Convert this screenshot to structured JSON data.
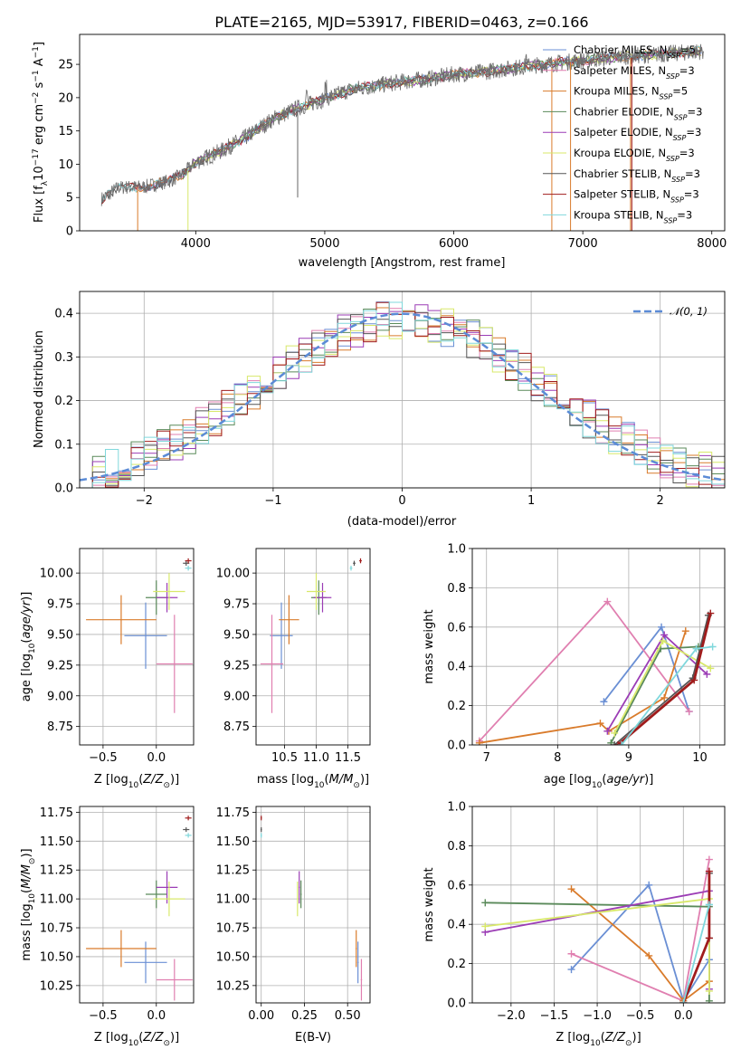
{
  "figure": {
    "title": "PLATE=2165, MJD=53917, FIBERID=0463, z=0.166"
  },
  "colors": {
    "chabrier_miles": "#6a8fd4",
    "salpeter_miles": "#e07fb0",
    "kroupa_miles": "#d97b2b",
    "chabrier_elodie": "#5a8a5a",
    "salpeter_elodie": "#9b3cb5",
    "kroupa_elodie": "#d8e86a",
    "chabrier_stelib": "#555555",
    "salpeter_stelib": "#a01c1c",
    "kroupa_stelib": "#80d8dc",
    "gaussian": "#5b8bd6",
    "grid": "#b0b0b0"
  },
  "models": [
    {
      "key": "chabrier_miles",
      "name": "Chabrier MILES, N",
      "n": "=5",
      "color": "#6a8fd4",
      "Z": -0.1,
      "Z_err": 0.2,
      "age": 9.49,
      "age_err": 0.27,
      "mass": 10.45,
      "mass_err": 0.18,
      "ebv": 0.56,
      "age_w": [
        [
          8.65,
          0.22
        ],
        [
          9.46,
          0.6
        ],
        [
          9.85,
          0.17
        ]
      ],
      "Z_w": [
        [
          -1.3,
          0.17
        ],
        [
          -0.4,
          0.6
        ],
        [
          0.0,
          0.01
        ],
        [
          0.3,
          0.22
        ]
      ]
    },
    {
      "key": "salpeter_miles",
      "name": "Salpeter MILES, N",
      "n": "=3",
      "color": "#e07fb0",
      "Z": 0.17,
      "Z_err": 0.17,
      "age": 9.26,
      "age_err": 0.4,
      "mass": 10.3,
      "mass_err": 0.18,
      "ebv": 0.58,
      "age_w": [
        [
          6.9,
          0.02
        ],
        [
          8.7,
          0.73
        ],
        [
          9.85,
          0.17
        ]
      ],
      "Z_w": [
        [
          -1.3,
          0.25
        ],
        [
          0.0,
          0.01
        ],
        [
          0.3,
          0.73
        ]
      ]
    },
    {
      "key": "kroupa_miles",
      "name": "Kroupa MILES, N",
      "n": "=5",
      "color": "#d97b2b",
      "Z": -0.33,
      "Z_err": 0.33,
      "age": 9.62,
      "age_err": 0.2,
      "mass": 10.57,
      "mass_err": 0.16,
      "ebv": 0.55,
      "age_w": [
        [
          6.9,
          0.01
        ],
        [
          8.6,
          0.11
        ],
        [
          8.72,
          0.07
        ],
        [
          9.5,
          0.24
        ],
        [
          9.8,
          0.58
        ]
      ],
      "Z_w": [
        [
          -1.3,
          0.58
        ],
        [
          -0.4,
          0.24
        ],
        [
          0.0,
          0.01
        ],
        [
          0.3,
          0.11
        ]
      ]
    },
    {
      "key": "chabrier_elodie",
      "name": "Chabrier ELODIE, N",
      "n": "=3",
      "color": "#5a8a5a",
      "Z": 0.0,
      "Z_err": 0.1,
      "age": 9.8,
      "age_err": 0.14,
      "mass": 11.04,
      "mass_err": 0.12,
      "ebv": 0.23,
      "age_w": [
        [
          8.75,
          0.01
        ],
        [
          9.45,
          0.49
        ],
        [
          9.98,
          0.5
        ]
      ],
      "Z_w": [
        [
          -2.3,
          0.51
        ],
        [
          0.3,
          0.49
        ],
        [
          0.3,
          0.01
        ]
      ]
    },
    {
      "key": "salpeter_elodie",
      "name": "Salpeter ELODIE, N",
      "n": "=3",
      "color": "#9b3cb5",
      "Z": 0.1,
      "Z_err": 0.1,
      "age": 9.8,
      "age_err": 0.12,
      "mass": 11.1,
      "mass_err": 0.14,
      "ebv": 0.22,
      "age_w": [
        [
          8.7,
          0.07
        ],
        [
          9.5,
          0.56
        ],
        [
          10.1,
          0.36
        ]
      ],
      "Z_w": [
        [
          -2.3,
          0.36
        ],
        [
          0.3,
          0.57
        ],
        [
          0.3,
          0.07
        ]
      ]
    },
    {
      "key": "kroupa_elodie",
      "name": "Kroupa ELODIE, N",
      "n": "=3",
      "color": "#d8e86a",
      "Z": 0.12,
      "Z_err": 0.15,
      "age": 9.85,
      "age_err": 0.15,
      "mass": 11.0,
      "mass_err": 0.15,
      "ebv": 0.21,
      "age_w": [
        [
          8.8,
          0.06
        ],
        [
          9.48,
          0.53
        ],
        [
          10.15,
          0.39
        ]
      ],
      "Z_w": [
        [
          -2.3,
          0.39
        ],
        [
          0.3,
          0.53
        ],
        [
          0.3,
          0.06
        ]
      ]
    },
    {
      "key": "chabrier_stelib",
      "name": "Chabrier STELIB, N",
      "n": "=3",
      "color": "#555555",
      "Z": 0.28,
      "Z_err": 0.03,
      "age": 10.08,
      "age_err": 0.02,
      "mass": 11.6,
      "mass_err": 0.02,
      "ebv": 0.0,
      "age_w": [
        [
          8.8,
          0.0
        ],
        [
          9.9,
          0.34
        ],
        [
          10.12,
          0.66
        ]
      ],
      "Z_w": [
        [
          0.0,
          0.0
        ],
        [
          0.3,
          0.33
        ],
        [
          0.3,
          0.66
        ]
      ]
    },
    {
      "key": "salpeter_stelib",
      "name": "Salpeter STELIB, N",
      "n": "=3",
      "color": "#a01c1c",
      "Z": 0.3,
      "Z_err": 0.03,
      "age": 10.1,
      "age_err": 0.02,
      "mass": 11.7,
      "mass_err": 0.02,
      "ebv": 0.0,
      "age_w": [
        [
          8.85,
          0.0
        ],
        [
          9.92,
          0.33
        ],
        [
          10.15,
          0.67
        ]
      ],
      "Z_w": [
        [
          0.0,
          0.0
        ],
        [
          0.3,
          0.33
        ],
        [
          0.3,
          0.67
        ]
      ]
    },
    {
      "key": "kroupa_stelib",
      "name": "Kroupa STELIB, N",
      "n": "=3",
      "color": "#80d8dc",
      "Z": 0.3,
      "Z_err": 0.03,
      "age": 10.04,
      "age_err": 0.02,
      "mass": 11.55,
      "mass_err": 0.02,
      "ebv": 0.0,
      "age_w": [
        [
          8.9,
          0.0
        ],
        [
          9.95,
          0.49
        ],
        [
          10.18,
          0.5
        ]
      ],
      "Z_w": [
        [
          0.0,
          0.0
        ],
        [
          0.3,
          0.5
        ],
        [
          0.3,
          0.5
        ]
      ]
    }
  ],
  "chart_data": [
    {
      "type": "line",
      "id": "spectrum",
      "title": "PLATE=2165, MJD=53917, FIBERID=0463, z=0.166",
      "xlabel": "wavelength [Angstrom, rest frame]",
      "ylabel_main": "Flux [f",
      "ylabel_sub": "λ",
      "ylabel_rest": "10",
      "xlim": [
        3100,
        8100
      ],
      "ylim": [
        0,
        29.5
      ],
      "xticks": [
        4000,
        5000,
        6000,
        7000,
        8000
      ],
      "yticks": [
        0,
        5,
        10,
        15,
        20,
        25
      ],
      "continuum": [
        [
          3270,
          4.8
        ],
        [
          3400,
          6.5
        ],
        [
          3600,
          6.6
        ],
        [
          3800,
          7.5
        ],
        [
          3900,
          8.5
        ],
        [
          4000,
          10.3
        ],
        [
          4200,
          12
        ],
        [
          4400,
          14.2
        ],
        [
          4600,
          16.8
        ],
        [
          4800,
          18.5
        ],
        [
          5000,
          19.8
        ],
        [
          5200,
          21.2
        ],
        [
          5400,
          21.8
        ],
        [
          5600,
          22.4
        ],
        [
          5800,
          22.8
        ],
        [
          6000,
          23.5
        ],
        [
          6200,
          23.8
        ],
        [
          6400,
          24.3
        ],
        [
          6600,
          24.8
        ],
        [
          6800,
          25.2
        ],
        [
          7000,
          25.6
        ],
        [
          7200,
          26
        ],
        [
          7400,
          26.3
        ],
        [
          7600,
          26.5
        ],
        [
          7800,
          26.8
        ],
        [
          7940,
          27
        ]
      ],
      "legend_position": "right"
    },
    {
      "type": "bar",
      "id": "residuals",
      "xlabel": "(data-model)/error",
      "ylabel": "Normed distribution",
      "xlim": [
        -2.5,
        2.5
      ],
      "ylim": [
        0,
        0.45
      ],
      "xticks": [
        -2,
        -1,
        0,
        1,
        2
      ],
      "yticks": [
        0.0,
        0.1,
        0.2,
        0.3,
        0.4
      ],
      "gaussian_label": "𝒩(0, 1)",
      "legend_position": "top-right",
      "grid": true
    },
    {
      "type": "scatter",
      "id": "age_vs_Z",
      "xlabel": "Z [log",
      "ylabel": "age  [log",
      "xlim": [
        -0.72,
        0.35
      ],
      "ylim": [
        8.6,
        10.2
      ],
      "xticks": [
        -0.5,
        0.0
      ],
      "yticks": [
        8.75,
        9.0,
        9.25,
        9.5,
        9.75,
        10.0
      ],
      "grid": true
    },
    {
      "type": "scatter",
      "id": "age_vs_mass",
      "xlabel": "mass [log",
      "xlim": [
        10.05,
        11.85
      ],
      "ylim": [
        8.6,
        10.2
      ],
      "xticks": [
        10.5,
        11.0,
        11.5
      ],
      "yticks": [
        8.75,
        9.0,
        9.25,
        9.5,
        9.75,
        10.0
      ],
      "grid": true
    },
    {
      "type": "line",
      "id": "weight_vs_age",
      "xlabel": "age  [log",
      "ylabel": "mass weight",
      "xlim": [
        6.8,
        10.35
      ],
      "ylim": [
        0,
        1.0
      ],
      "xticks": [
        7,
        8,
        9,
        10
      ],
      "yticks": [
        0.0,
        0.2,
        0.4,
        0.6,
        0.8,
        1.0
      ],
      "grid": true
    },
    {
      "type": "scatter",
      "id": "mass_vs_Z",
      "xlabel": "Z [log",
      "ylabel": "mass [log",
      "xlim": [
        -0.72,
        0.35
      ],
      "ylim": [
        10.1,
        11.8
      ],
      "xticks": [
        -0.5,
        0.0
      ],
      "yticks": [
        10.25,
        10.5,
        10.75,
        11.0,
        11.25,
        11.5,
        11.75
      ],
      "grid": true
    },
    {
      "type": "scatter",
      "id": "mass_vs_ebv",
      "xlabel": "E(B-V)",
      "xlim": [
        -0.03,
        0.63
      ],
      "ylim": [
        10.1,
        11.8
      ],
      "xticks": [
        0.0,
        0.25,
        0.5
      ],
      "yticks": [
        10.25,
        10.5,
        10.75,
        11.0,
        11.25,
        11.5,
        11.75
      ],
      "grid": true
    },
    {
      "type": "line",
      "id": "weight_vs_Z",
      "xlabel": "Z [log",
      "ylabel": "mass weight",
      "xlim": [
        -2.45,
        0.48
      ],
      "ylim": [
        0,
        1.0
      ],
      "xticks": [
        -2.0,
        -1.5,
        -1.0,
        -0.5,
        0.0
      ],
      "yticks": [
        0.0,
        0.2,
        0.4,
        0.6,
        0.8,
        1.0
      ],
      "grid": true
    }
  ]
}
